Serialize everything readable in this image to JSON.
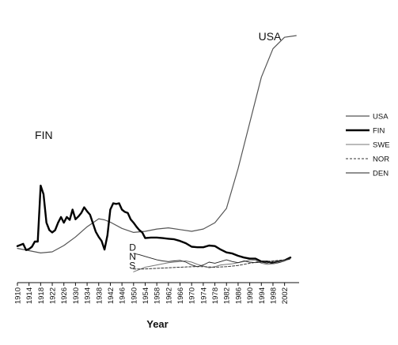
{
  "chart_data": {
    "type": "line",
    "xlabel": "Year",
    "ylabel": "",
    "xlim": [
      1910,
      2007
    ],
    "ylim": [
      -6,
      38
    ],
    "tick_labels": [
      "1910",
      "1914",
      "1918",
      "1922",
      "1926",
      "1930",
      "1934",
      "1938",
      "1942",
      "1946",
      "1950",
      "1954",
      "1958",
      "1962",
      "1966",
      "1970",
      "1974",
      "1978",
      "1982",
      "1986",
      "1990",
      "1994",
      "1998",
      "2002"
    ],
    "tick_values": [
      1910,
      1914,
      1918,
      1922,
      1926,
      1930,
      1934,
      1938,
      1942,
      1946,
      1950,
      1954,
      1958,
      1962,
      1966,
      1970,
      1974,
      1978,
      1982,
      1986,
      1990,
      1994,
      1998,
      2002
    ],
    "grid": false,
    "legend_position": "right",
    "annotations": [
      {
        "text": "USA",
        "x": 1993,
        "y": 36.5,
        "size": "large"
      },
      {
        "text": "FIN",
        "x": 1916,
        "y": 19.2,
        "size": "large"
      },
      {
        "text": "D",
        "x": 1948.5,
        "y": -0.4,
        "size": "small"
      },
      {
        "text": "N",
        "x": 1948.5,
        "y": -2.0,
        "size": "small"
      },
      {
        "text": "S",
        "x": 1948.5,
        "y": -3.6,
        "size": "small"
      }
    ],
    "series": [
      {
        "name": "USA",
        "color": "#555555",
        "width": 1.2,
        "dash": "",
        "x": [
          1910,
          1914,
          1918,
          1922,
          1926,
          1930,
          1934,
          1938,
          1940,
          1942,
          1946,
          1950,
          1954,
          1958,
          1962,
          1966,
          1970,
          1974,
          1978,
          1982,
          1986,
          1990,
          1994,
          1998,
          2002,
          2006
        ],
        "y": [
          0,
          -0.4,
          -0.8,
          -0.6,
          0.5,
          2,
          3.8,
          5.2,
          5,
          4.6,
          3.5,
          2.8,
          3,
          3.4,
          3.6,
          3.3,
          3,
          3.4,
          4.5,
          7,
          14,
          22,
          30,
          35,
          37,
          37.3
        ]
      },
      {
        "name": "FIN",
        "color": "#000000",
        "width": 2.4,
        "dash": "",
        "x": [
          1910,
          1912,
          1913,
          1914,
          1915,
          1916,
          1917,
          1918,
          1919,
          1920,
          1921,
          1922,
          1923,
          1924,
          1925,
          1926,
          1927,
          1928,
          1929,
          1930,
          1931,
          1932,
          1933,
          1934,
          1935,
          1936,
          1937,
          1938,
          1939,
          1940,
          1941,
          1942,
          1943,
          1944,
          1945,
          1946,
          1947,
          1948,
          1949,
          1950,
          1951,
          1952,
          1953,
          1954,
          1956,
          1958,
          1960,
          1962,
          1964,
          1966,
          1968,
          1970,
          1972,
          1974,
          1976,
          1978,
          1980,
          1982,
          1984,
          1986,
          1988,
          1990,
          1992,
          1994,
          1996,
          1998,
          2000,
          2002,
          2004
        ],
        "y": [
          0.4,
          0.8,
          -0.3,
          -0.1,
          0.3,
          1.2,
          1.2,
          11,
          9.5,
          4.5,
          3.2,
          2.8,
          3.2,
          4.5,
          5.5,
          4.5,
          5.5,
          5,
          6.8,
          5.1,
          5.6,
          6.2,
          7.2,
          6.5,
          5.9,
          4.4,
          2.9,
          2,
          1.3,
          -0.2,
          2.3,
          6.8,
          7.9,
          7.8,
          7.9,
          6.8,
          6.4,
          6.2,
          5.1,
          4.5,
          3.8,
          3.2,
          2.8,
          1.8,
          1.9,
          1.9,
          1.8,
          1.7,
          1.6,
          1.3,
          0.9,
          0.3,
          0.2,
          0.2,
          0.5,
          0.4,
          -0.2,
          -0.7,
          -0.9,
          -1.3,
          -1.6,
          -1.8,
          -1.8,
          -2.3,
          -2.3,
          -2.6,
          -2.4,
          -2.1,
          -1.6
        ]
      },
      {
        "name": "SWE",
        "color": "#777777",
        "width": 1.0,
        "dash": "",
        "x": [
          1950,
          1954,
          1958,
          1962,
          1966,
          1968,
          1970,
          1972,
          1974,
          1976,
          1978,
          1980,
          1982,
          1984,
          1986,
          1988,
          1990,
          1992,
          1994,
          1996,
          1998,
          2000,
          2002,
          2004
        ],
        "y": [
          -4.1,
          -3.3,
          -2.9,
          -2.5,
          -2.3,
          -2.2,
          -2.4,
          -2.8,
          -3.1,
          -3.4,
          -3.2,
          -2.9,
          -2.8,
          -2.7,
          -2.5,
          -2.3,
          -2,
          -2.1,
          -2.6,
          -2.8,
          -2.7,
          -2.4,
          -2.2,
          -1.8
        ]
      },
      {
        "name": "NOR",
        "color": "#333333",
        "width": 1.0,
        "dash": "3,2",
        "x": [
          1950,
          1954,
          1958,
          1962,
          1966,
          1970,
          1974,
          1978,
          1982,
          1986,
          1990,
          1994,
          1998,
          2002,
          2004
        ],
        "y": [
          -3.6,
          -3.6,
          -3.5,
          -3.4,
          -3.3,
          -3.2,
          -3.2,
          -3.3,
          -3.2,
          -3,
          -2.6,
          -2.3,
          -2.2,
          -2,
          -1.9
        ]
      },
      {
        "name": "DEN",
        "color": "#222222",
        "width": 0.9,
        "dash": "",
        "x": [
          1950,
          1952,
          1954,
          1956,
          1958,
          1960,
          1962,
          1964,
          1966,
          1968,
          1970,
          1972,
          1974,
          1976,
          1978,
          1980,
          1982,
          1984,
          1986,
          1988,
          1990,
          1992,
          1994,
          1996,
          1998,
          2000,
          2002,
          2004
        ],
        "y": [
          -0.9,
          -1.1,
          -1.4,
          -1.7,
          -2,
          -2.2,
          -2.3,
          -2.2,
          -2.1,
          -2.4,
          -2.9,
          -3.2,
          -2.9,
          -2.4,
          -2.6,
          -2.3,
          -2,
          -2.3,
          -2.5,
          -2.2,
          -2.4,
          -2.5,
          -2.4,
          -2.6,
          -2.3,
          -2.2,
          -2.1,
          -1.7
        ]
      }
    ]
  }
}
